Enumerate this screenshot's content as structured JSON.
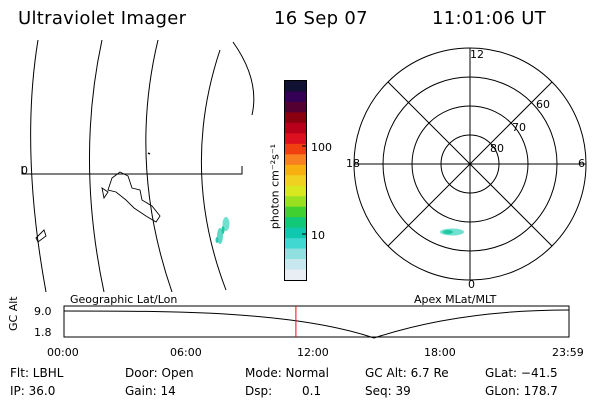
{
  "header": {
    "title": "Ultraviolet Imager",
    "date": "16 Sep 07",
    "time": "11:01:06 UT"
  },
  "geo_map": {
    "label": "Geographic Lat/Lon",
    "lon_marker": "0"
  },
  "colorbar": {
    "unit_label": "photon cm⁻²s⁻¹",
    "ticks": [
      "100",
      "10"
    ],
    "colors": [
      "#111133",
      "#330055",
      "#550033",
      "#8a0010",
      "#b8001a",
      "#dd1020",
      "#f04010",
      "#f88020",
      "#f8b010",
      "#f0d020",
      "#d8e820",
      "#98e020",
      "#40d030",
      "#10c878",
      "#10c8b0",
      "#40d8d0",
      "#90e0e0",
      "#c8e8f0",
      "#e8eef4"
    ]
  },
  "polar_map": {
    "label": "Apex MLat/MLT",
    "mlt_labels": [
      "12",
      "18",
      "6",
      "0"
    ],
    "lat_labels": [
      "60",
      "70",
      "80"
    ]
  },
  "altitude_plot": {
    "ylabel": "GC Alt",
    "yticks": [
      "9.0",
      "1.8"
    ],
    "xticks": [
      "00:00",
      "06:00",
      "12:00",
      "18:00",
      "23:59"
    ],
    "current_time_hours": 11.02,
    "marker_color": "#ff0000"
  },
  "info": {
    "filter": "Flt: LBHL",
    "ip": "IP: 36.0",
    "door": "Door: Open",
    "gain": "Gain: 14",
    "mode": "Mode: Normal",
    "dsp_label": "Dsp:",
    "dsp_value": "0.1",
    "gc_alt": "GC Alt: 6.7 Re",
    "seq": "Seq: 39",
    "glat": "GLat: −41.5",
    "glon": "GLon: 178.7"
  }
}
